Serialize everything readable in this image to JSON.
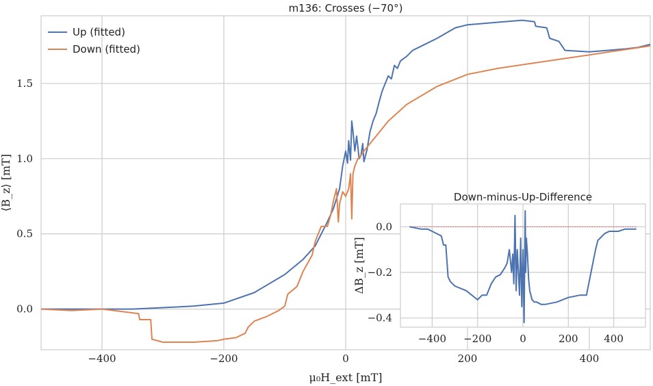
{
  "chart_data": [
    {
      "type": "line",
      "title": "m136:  Crosses (−70°)",
      "xlabel": "μ₀H_ext [mT]",
      "ylabel": "⟨B_z⟩ [mT]",
      "xlim": [
        -500,
        500
      ],
      "ylim": [
        -0.27,
        1.95
      ],
      "xticks": [
        -400,
        -200,
        0,
        200,
        400
      ],
      "xtick_labels": [
        "−400",
        "−200",
        "0",
        "200",
        "400"
      ],
      "yticks": [
        0.0,
        0.5,
        1.0,
        1.5
      ],
      "ytick_labels": [
        "0.0",
        "0.5",
        "1.0",
        "1.5"
      ],
      "grid": true,
      "legend": "top-left",
      "series": [
        {
          "name": "Up (fitted)",
          "color": "#4c72b0",
          "x": [
            -500,
            -450,
            -400,
            -350,
            -300,
            -250,
            -200,
            -150,
            -100,
            -70,
            -50,
            -40,
            -30,
            -20,
            -10,
            -5,
            0,
            3,
            5,
            8,
            10,
            12,
            15,
            18,
            20,
            22,
            25,
            28,
            30,
            35,
            40,
            45,
            50,
            55,
            60,
            65,
            70,
            75,
            80,
            85,
            90,
            100,
            110,
            120,
            150,
            180,
            200,
            230,
            260,
            290,
            310,
            312,
            330,
            335,
            350,
            360,
            400,
            430,
            460,
            480,
            500
          ],
          "y": [
            0.0,
            0.0,
            0.0,
            0.0,
            0.01,
            0.02,
            0.04,
            0.11,
            0.23,
            0.33,
            0.42,
            0.5,
            0.58,
            0.67,
            0.8,
            0.95,
            1.05,
            0.97,
            1.12,
            0.99,
            1.25,
            1.18,
            1.05,
            1.15,
            1.08,
            1.0,
            1.02,
            1.1,
            0.98,
            1.06,
            1.18,
            1.25,
            1.3,
            1.38,
            1.45,
            1.5,
            1.55,
            1.53,
            1.62,
            1.6,
            1.65,
            1.68,
            1.72,
            1.74,
            1.8,
            1.87,
            1.89,
            1.9,
            1.91,
            1.92,
            1.91,
            1.88,
            1.87,
            1.8,
            1.78,
            1.72,
            1.71,
            1.72,
            1.73,
            1.74,
            1.76
          ]
        },
        {
          "name": "Down (fitted)",
          "color": "#dd8452",
          "x": [
            -500,
            -450,
            -400,
            -360,
            -340,
            -338,
            -320,
            -318,
            -300,
            -250,
            -210,
            -200,
            -180,
            -165,
            -160,
            -150,
            -130,
            -110,
            -100,
            -95,
            -80,
            -70,
            -55,
            -50,
            -45,
            -40,
            -30,
            -25,
            -20,
            -15,
            -12,
            -10,
            -5,
            0,
            5,
            8,
            10,
            12,
            15,
            20,
            25,
            30,
            40,
            50,
            70,
            100,
            150,
            200,
            250,
            300,
            350,
            400,
            450,
            500
          ],
          "y": [
            0.0,
            -0.01,
            0.0,
            -0.02,
            -0.03,
            -0.07,
            -0.07,
            -0.2,
            -0.22,
            -0.22,
            -0.21,
            -0.2,
            -0.19,
            -0.16,
            -0.12,
            -0.08,
            -0.05,
            -0.01,
            0.02,
            0.1,
            0.15,
            0.25,
            0.36,
            0.45,
            0.5,
            0.55,
            0.55,
            0.62,
            0.72,
            0.8,
            0.58,
            0.7,
            0.78,
            0.75,
            0.8,
            0.9,
            0.6,
            0.9,
            0.95,
            1.0,
            1.02,
            1.05,
            1.1,
            1.15,
            1.25,
            1.36,
            1.48,
            1.56,
            1.6,
            1.63,
            1.66,
            1.69,
            1.72,
            1.75
          ]
        }
      ]
    },
    {
      "type": "line",
      "title": "Down-minus-Up-Difference",
      "xlabel": "",
      "ylabel": "ΔB_z [mT]",
      "xlim": [
        -540,
        540
      ],
      "ylim": [
        -0.44,
        0.1
      ],
      "xticks": [
        -400,
        -200,
        0,
        200,
        400
      ],
      "xtick_labels": [
        "−400",
        "−200",
        "0",
        "200",
        "400"
      ],
      "yticks": [
        0.0,
        -0.2,
        -0.4
      ],
      "ytick_labels": [
        "0.0",
        "−0.2",
        "−0.4"
      ],
      "grid": true,
      "reference_line": {
        "y": 0.0,
        "color": "#c44e52"
      },
      "series": [
        {
          "color": "#4c72b0",
          "x": [
            -500,
            -450,
            -420,
            -400,
            -360,
            -350,
            -340,
            -330,
            -320,
            -310,
            -300,
            -250,
            -200,
            -180,
            -160,
            -140,
            -120,
            -100,
            -80,
            -70,
            -60,
            -50,
            -45,
            -40,
            -35,
            -30,
            -25,
            -20,
            -15,
            -10,
            -5,
            0,
            5,
            8,
            10,
            12,
            15,
            20,
            25,
            30,
            35,
            40,
            50,
            60,
            80,
            100,
            150,
            200,
            250,
            280,
            300,
            320,
            330,
            340,
            360,
            380,
            420,
            450,
            480,
            500
          ],
          "y": [
            0.0,
            -0.01,
            -0.01,
            -0.02,
            -0.04,
            -0.08,
            -0.08,
            -0.22,
            -0.24,
            -0.25,
            -0.26,
            -0.28,
            -0.32,
            -0.3,
            -0.3,
            -0.25,
            -0.22,
            -0.21,
            -0.18,
            -0.16,
            -0.1,
            -0.2,
            -0.12,
            -0.25,
            0.05,
            -0.28,
            -0.1,
            -0.2,
            -0.3,
            -0.05,
            -0.35,
            -0.1,
            -0.42,
            -0.1,
            0.07,
            -0.2,
            -0.05,
            -0.12,
            -0.23,
            -0.28,
            -0.3,
            -0.32,
            -0.33,
            -0.33,
            -0.34,
            -0.34,
            -0.33,
            -0.31,
            -0.3,
            -0.3,
            -0.2,
            -0.1,
            -0.06,
            -0.05,
            -0.03,
            -0.02,
            -0.02,
            -0.01,
            -0.01,
            -0.01
          ]
        }
      ]
    }
  ]
}
